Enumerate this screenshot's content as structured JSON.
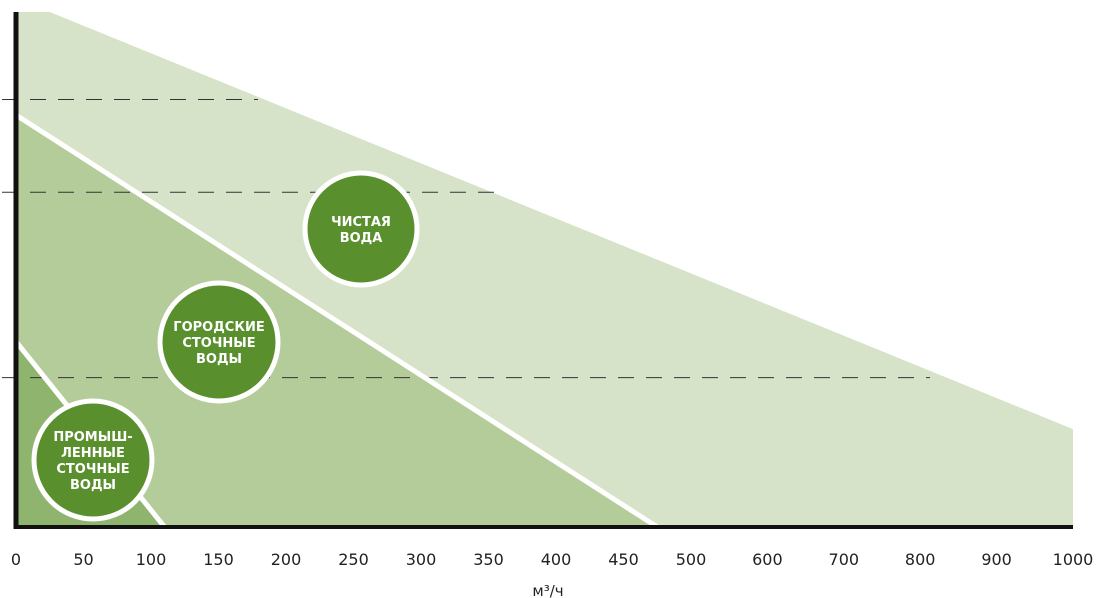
{
  "chart_data": {
    "type": "area",
    "xlabel": "м³/ч",
    "x_ticks": [
      0,
      50,
      100,
      150,
      200,
      250,
      300,
      350,
      400,
      450,
      500,
      600,
      700,
      800,
      900,
      1000
    ],
    "series": [
      {
        "name": "ЧИСТАЯ ВОДА",
        "points": [
          [
            0,
            1.0
          ],
          [
            25,
            1.0
          ],
          [
            1000,
            0.19
          ]
        ]
      },
      {
        "name": "ГОРОДСКИЕ СТОЧНЫЕ ВОДЫ",
        "points": [
          [
            0,
            0.8
          ],
          [
            475,
            0
          ]
        ]
      },
      {
        "name": "ПРОМЫШЛЕННЫЕ СТОЧНЫЕ ВОДЫ",
        "points": [
          [
            0,
            0.36
          ],
          [
            110,
            0
          ]
        ]
      }
    ],
    "reference_lines": [
      0.83,
      0.65,
      0.29
    ],
    "labels": [
      {
        "lines": [
          "ЧИСТАЯ",
          "ВОДА"
        ]
      },
      {
        "lines": [
          "ГОРОДСКИЕ",
          "СТОЧНЫЕ",
          "ВОДЫ"
        ]
      },
      {
        "lines": [
          "ПРОМЫШ-",
          "ЛЕННЫЕ",
          "СТОЧНЫЕ",
          "ВОДЫ"
        ]
      }
    ],
    "colors": {
      "clean_water": "#d6e3c9",
      "urban_wastewater": "#b4cc9a",
      "industrial_wastewater": "#8fb46e",
      "badge": "#5a8f2e",
      "axis": "#111111"
    }
  }
}
